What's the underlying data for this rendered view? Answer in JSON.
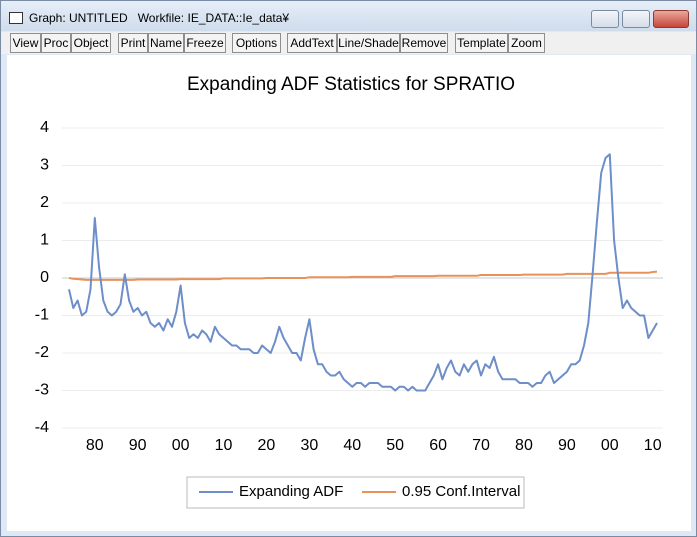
{
  "window": {
    "title": "Graph: UNTITLED   Workfile: IE_DATA::Ie_data¥"
  },
  "toolbar": [
    "View",
    "Proc",
    "Object",
    "Print",
    "Name",
    "Freeze",
    "Options",
    "AddText",
    "Line/Shade",
    "Remove",
    "Template",
    "Zoom"
  ],
  "chart_data": {
    "type": "line",
    "title": "Expanding ADF Statistics for SPRATIO",
    "categories": [
      null,
      null,
      null,
      null,
      null,
      null,
      "80",
      null,
      null,
      null,
      null,
      null,
      null,
      null,
      null,
      null,
      "90",
      null,
      null,
      null,
      null,
      null,
      null,
      null,
      null,
      null,
      "00",
      null,
      null,
      null,
      null,
      null,
      null,
      null,
      null,
      null,
      "10",
      null,
      null,
      null,
      null,
      null,
      null,
      null,
      null,
      null,
      "20",
      null,
      null,
      null,
      null,
      null,
      null,
      null,
      null,
      null,
      "30",
      null,
      null,
      null,
      null,
      null,
      null,
      null,
      null,
      null,
      "40",
      null,
      null,
      null,
      null,
      null,
      null,
      null,
      null,
      null,
      "50",
      null,
      null,
      null,
      null,
      null,
      null,
      null,
      null,
      null,
      "60",
      null,
      null,
      null,
      null,
      null,
      null,
      null,
      null,
      null,
      "70",
      null,
      null,
      null,
      null,
      null,
      null,
      null,
      null,
      null,
      "80",
      null,
      null,
      null,
      null,
      null,
      null,
      null,
      null,
      null,
      "90",
      null,
      null,
      null,
      null,
      null,
      null,
      null,
      null,
      null,
      "00",
      null,
      null,
      null,
      null,
      null,
      null,
      null,
      null,
      null,
      "10",
      null
    ],
    "series": [
      {
        "name": "Expanding ADF",
        "color": "#6d8ec8",
        "values": [
          -0.3,
          -0.8,
          -0.6,
          -1.0,
          -0.9,
          -0.3,
          1.6,
          0.3,
          -0.6,
          -0.9,
          -1.0,
          -0.9,
          -0.7,
          0.1,
          -0.6,
          -0.9,
          -0.8,
          -1.0,
          -0.9,
          -1.2,
          -1.3,
          -1.2,
          -1.4,
          -1.1,
          -1.3,
          -0.9,
          -0.2,
          -1.2,
          -1.6,
          -1.5,
          -1.6,
          -1.4,
          -1.5,
          -1.7,
          -1.3,
          -1.5,
          -1.6,
          -1.7,
          -1.8,
          -1.8,
          -1.9,
          -1.9,
          -1.9,
          -2.0,
          -2.0,
          -1.8,
          -1.9,
          -2.0,
          -1.7,
          -1.3,
          -1.6,
          -1.8,
          -2.0,
          -2.0,
          -2.2,
          -1.6,
          -1.1,
          -1.9,
          -2.3,
          -2.3,
          -2.5,
          -2.6,
          -2.6,
          -2.5,
          -2.7,
          -2.8,
          -2.9,
          -2.8,
          -2.8,
          -2.9,
          -2.8,
          -2.8,
          -2.8,
          -2.9,
          -2.9,
          -2.9,
          -3.0,
          -2.9,
          -2.9,
          -3.0,
          -2.9,
          -3.0,
          -3.0,
          -3.0,
          -2.8,
          -2.6,
          -2.3,
          -2.7,
          -2.4,
          -2.2,
          -2.5,
          -2.6,
          -2.3,
          -2.5,
          -2.3,
          -2.2,
          -2.6,
          -2.3,
          -2.4,
          -2.1,
          -2.5,
          -2.7,
          -2.7,
          -2.7,
          -2.7,
          -2.8,
          -2.8,
          -2.8,
          -2.9,
          -2.8,
          -2.8,
          -2.6,
          -2.5,
          -2.8,
          -2.7,
          -2.6,
          -2.5,
          -2.3,
          -2.3,
          -2.2,
          -1.8,
          -1.2,
          0.1,
          1.5,
          2.8,
          3.2,
          3.3,
          1.0,
          0.0,
          -0.8,
          -0.6,
          -0.8,
          -0.9,
          -1.0,
          -1.0,
          -1.6,
          -1.4,
          -1.2
        ]
      },
      {
        "name": "0.95 Conf.Interval",
        "color": "#e8925a",
        "values": [
          0.0,
          -0.02,
          -0.03,
          -0.04,
          -0.05,
          -0.05,
          -0.05,
          -0.05,
          -0.05,
          -0.05,
          -0.05,
          -0.05,
          -0.05,
          -0.05,
          -0.05,
          -0.05,
          -0.04,
          -0.04,
          -0.04,
          -0.04,
          -0.04,
          -0.04,
          -0.04,
          -0.04,
          -0.04,
          -0.04,
          -0.03,
          -0.03,
          -0.03,
          -0.03,
          -0.03,
          -0.03,
          -0.03,
          -0.03,
          -0.03,
          -0.03,
          -0.01,
          -0.01,
          -0.01,
          -0.01,
          -0.01,
          -0.01,
          -0.01,
          -0.01,
          -0.01,
          -0.01,
          0.0,
          0.0,
          0.0,
          0.0,
          0.0,
          0.0,
          0.0,
          0.0,
          0.0,
          0.0,
          0.02,
          0.02,
          0.02,
          0.02,
          0.02,
          0.02,
          0.02,
          0.02,
          0.02,
          0.02,
          0.03,
          0.03,
          0.03,
          0.03,
          0.03,
          0.03,
          0.03,
          0.03,
          0.03,
          0.03,
          0.05,
          0.05,
          0.05,
          0.05,
          0.05,
          0.05,
          0.05,
          0.05,
          0.05,
          0.05,
          0.06,
          0.06,
          0.06,
          0.06,
          0.06,
          0.06,
          0.06,
          0.06,
          0.06,
          0.06,
          0.08,
          0.08,
          0.08,
          0.08,
          0.08,
          0.08,
          0.08,
          0.08,
          0.08,
          0.08,
          0.09,
          0.09,
          0.09,
          0.09,
          0.09,
          0.09,
          0.09,
          0.09,
          0.09,
          0.09,
          0.11,
          0.11,
          0.11,
          0.11,
          0.11,
          0.11,
          0.11,
          0.11,
          0.11,
          0.11,
          0.14,
          0.14,
          0.14,
          0.14,
          0.14,
          0.14,
          0.14,
          0.14,
          0.14,
          0.14,
          0.16,
          0.17
        ]
      }
    ],
    "ylim": [
      -4,
      4
    ],
    "yticks": [
      -4,
      -3,
      -2,
      -1,
      0,
      1,
      2,
      3,
      4
    ],
    "grid": true,
    "legend": "bottom"
  }
}
